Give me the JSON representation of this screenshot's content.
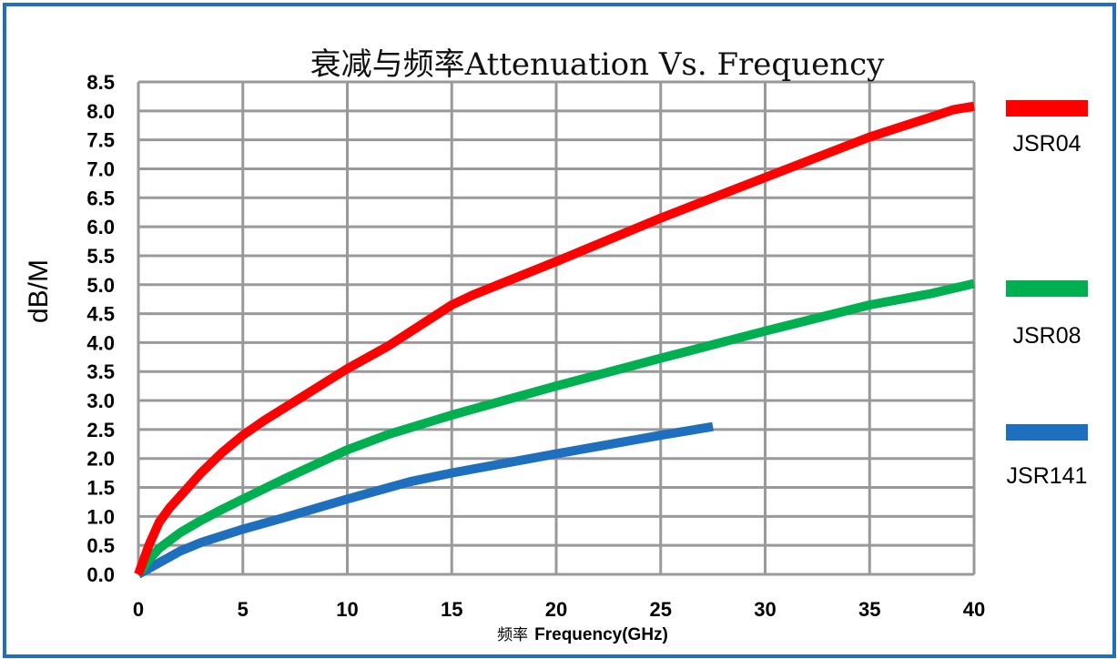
{
  "chart_data": {
    "type": "line",
    "title": "衰减与频率Attenuation Vs. Frequency",
    "ylabel": "dB/M",
    "xlabel_prefix": "频率",
    "xlabel": "Frequency(GHz)",
    "xlim": [
      0,
      40
    ],
    "ylim": [
      0,
      8.5
    ],
    "x_ticks": [
      0,
      5,
      10,
      15,
      20,
      25,
      30,
      35,
      40
    ],
    "y_ticks": [
      "0.0",
      "0.5",
      "1.0",
      "1.5",
      "2.0",
      "2.5",
      "3.0",
      "3.5",
      "4.0",
      "4.5",
      "5.0",
      "5.5",
      "6.0",
      "6.5",
      "7.0",
      "7.5",
      "8.0",
      "8.5"
    ],
    "grid": true,
    "legend_position": "right",
    "series": [
      {
        "name": "JSR04",
        "color": "#ff0000",
        "x": [
          0,
          0.5,
          1,
          1.5,
          2,
          3,
          4,
          5,
          6,
          8,
          10,
          12,
          15,
          16,
          20,
          25,
          30,
          35,
          38,
          39,
          40
        ],
        "y": [
          0,
          0.5,
          0.9,
          1.15,
          1.35,
          1.75,
          2.1,
          2.4,
          2.65,
          3.1,
          3.55,
          3.95,
          4.65,
          4.82,
          5.4,
          6.15,
          6.85,
          7.55,
          7.9,
          8.02,
          8.08
        ]
      },
      {
        "name": "JSR08",
        "color": "#00b050",
        "x": [
          0,
          0.5,
          1,
          2,
          3,
          4,
          5,
          7,
          10,
          12,
          15,
          17,
          20,
          25,
          30,
          35,
          38,
          40
        ],
        "y": [
          0,
          0.25,
          0.45,
          0.72,
          0.93,
          1.12,
          1.3,
          1.65,
          2.15,
          2.42,
          2.75,
          2.95,
          3.25,
          3.73,
          4.2,
          4.65,
          4.85,
          5.02
        ]
      },
      {
        "name": "JSR141",
        "color": "#1f6fbf",
        "x": [
          0,
          1,
          2,
          3,
          5,
          7,
          10,
          13,
          15,
          20,
          25,
          27.5
        ],
        "y": [
          0,
          0.2,
          0.4,
          0.55,
          0.78,
          0.98,
          1.3,
          1.6,
          1.75,
          2.08,
          2.4,
          2.55
        ]
      }
    ]
  }
}
